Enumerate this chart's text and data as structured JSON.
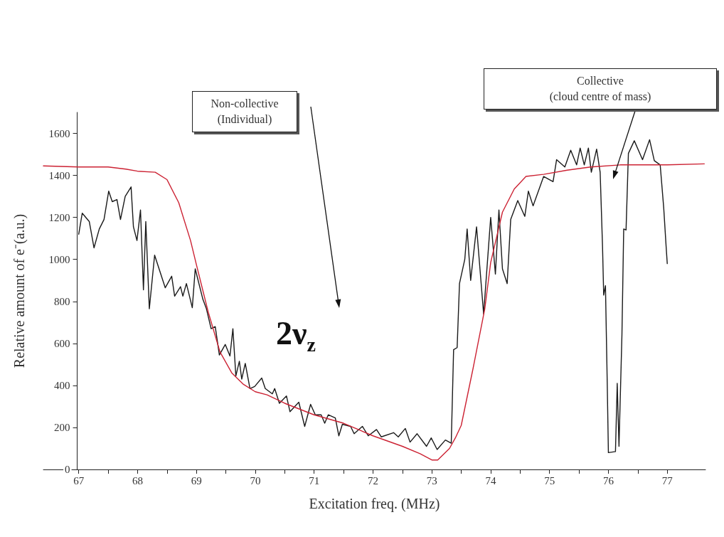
{
  "chart_data": {
    "type": "line",
    "xlabel": "Excitation freq. (MHz)",
    "ylabel": "Relative amount of e⁻(a.u.)",
    "xlim": [
      66.4,
      77.65
    ],
    "ylim": [
      0,
      1700
    ],
    "xticks": [
      67,
      {
        "value": 67.5,
        "label": null
      },
      68,
      {
        "value": 68.5,
        "label": null
      },
      69,
      {
        "value": 69.5,
        "label": null
      },
      70,
      {
        "value": 70.5,
        "label": null
      },
      71,
      {
        "value": 71.5,
        "label": null
      },
      72,
      {
        "value": 72.5,
        "label": null
      },
      73,
      {
        "value": 73.5,
        "label": null
      },
      74,
      {
        "value": 74.5,
        "label": null
      },
      75,
      {
        "value": 75.5,
        "label": null
      },
      76,
      {
        "value": 76.5,
        "label": null
      },
      77
    ],
    "yticks": [
      0,
      200,
      400,
      600,
      800,
      1000,
      1200,
      1400,
      1600
    ],
    "grid": false,
    "marker": "none",
    "line_style": "solid",
    "series": [
      {
        "color": "#1a1a1a",
        "x": [
          67.0,
          67.06,
          67.18,
          67.26,
          67.35,
          67.43,
          67.51,
          67.57,
          67.65,
          67.71,
          67.79,
          67.89,
          67.93,
          67.99,
          68.05,
          68.1,
          68.14,
          68.2,
          68.29,
          68.47,
          68.58,
          68.63,
          68.73,
          68.77,
          68.83,
          68.93,
          68.98,
          69.11,
          69.17,
          69.25,
          69.32,
          69.39,
          69.49,
          69.57,
          69.62,
          69.67,
          69.73,
          69.77,
          69.83,
          69.91,
          69.99,
          70.11,
          70.17,
          70.29,
          70.33,
          70.41,
          70.53,
          70.59,
          70.74,
          70.84,
          70.94,
          71.02,
          71.12,
          71.18,
          71.24,
          71.36,
          71.42,
          71.48,
          71.62,
          71.68,
          71.82,
          71.92,
          72.06,
          72.14,
          72.35,
          72.43,
          72.55,
          72.63,
          72.75,
          72.91,
          72.99,
          73.09,
          73.23,
          73.33,
          73.37,
          73.43,
          73.47,
          73.56,
          73.6,
          73.66,
          73.76,
          73.88,
          74.0,
          74.08,
          74.14,
          74.2,
          74.28,
          74.34,
          74.46,
          74.58,
          74.64,
          74.72,
          74.9,
          75.06,
          75.12,
          75.26,
          75.36,
          75.46,
          75.52,
          75.59,
          75.66,
          75.71,
          75.8,
          75.86,
          75.9,
          75.92,
          75.95,
          75.98,
          76.0,
          76.12,
          76.15,
          76.18,
          76.23,
          76.26,
          76.3,
          76.34,
          76.44,
          76.58,
          76.7,
          76.78,
          76.88,
          76.94,
          76.98,
          77.0
        ],
        "values": [
          1120,
          1220,
          1180,
          1055,
          1145,
          1190,
          1325,
          1275,
          1285,
          1190,
          1300,
          1345,
          1155,
          1090,
          1235,
          855,
          1180,
          765,
          1020,
          865,
          920,
          825,
          870,
          825,
          885,
          770,
          955,
          810,
          765,
          670,
          680,
          545,
          595,
          540,
          670,
          445,
          515,
          430,
          505,
          385,
          395,
          435,
          385,
          360,
          385,
          315,
          350,
          275,
          320,
          205,
          310,
          260,
          260,
          220,
          260,
          245,
          160,
          215,
          205,
          170,
          205,
          160,
          190,
          155,
          175,
          155,
          195,
          130,
          170,
          110,
          150,
          95,
          140,
          125,
          570,
          580,
          885,
          1000,
          1145,
          900,
          1155,
          740,
          1200,
          930,
          1235,
          955,
          885,
          1190,
          1280,
          1205,
          1325,
          1255,
          1395,
          1370,
          1475,
          1440,
          1520,
          1450,
          1530,
          1450,
          1530,
          1415,
          1525,
          1415,
          1065,
          830,
          875,
          415,
          80,
          85,
          410,
          110,
          640,
          1145,
          1140,
          1505,
          1565,
          1475,
          1570,
          1470,
          1450,
          1245,
          1065,
          980
        ]
      },
      {
        "color": "#cc2233",
        "x": [
          66.4,
          67.0,
          67.5,
          67.8,
          68.0,
          68.3,
          68.5,
          68.7,
          68.9,
          69.0,
          69.2,
          69.4,
          69.6,
          69.8,
          70.0,
          70.2,
          70.5,
          71.0,
          71.5,
          72.0,
          72.5,
          72.8,
          73.0,
          73.1,
          73.3,
          73.4,
          73.5,
          73.7,
          73.9,
          74.0,
          74.2,
          74.4,
          74.6,
          74.9,
          75.3,
          75.7,
          76.2,
          77.0,
          77.63
        ],
        "values": [
          1445,
          1440,
          1440,
          1430,
          1420,
          1415,
          1380,
          1270,
          1090,
          975,
          750,
          560,
          460,
          405,
          370,
          355,
          315,
          260,
          220,
          160,
          110,
          75,
          45,
          45,
          100,
          150,
          210,
          480,
          765,
          985,
          1225,
          1335,
          1395,
          1405,
          1425,
          1440,
          1450,
          1450,
          1455
        ]
      }
    ],
    "annotations": [
      "Non-collective\n(Individual)",
      "Collective\n(cloud centre of mass)",
      "2ν$_{z}$"
    ]
  }
}
